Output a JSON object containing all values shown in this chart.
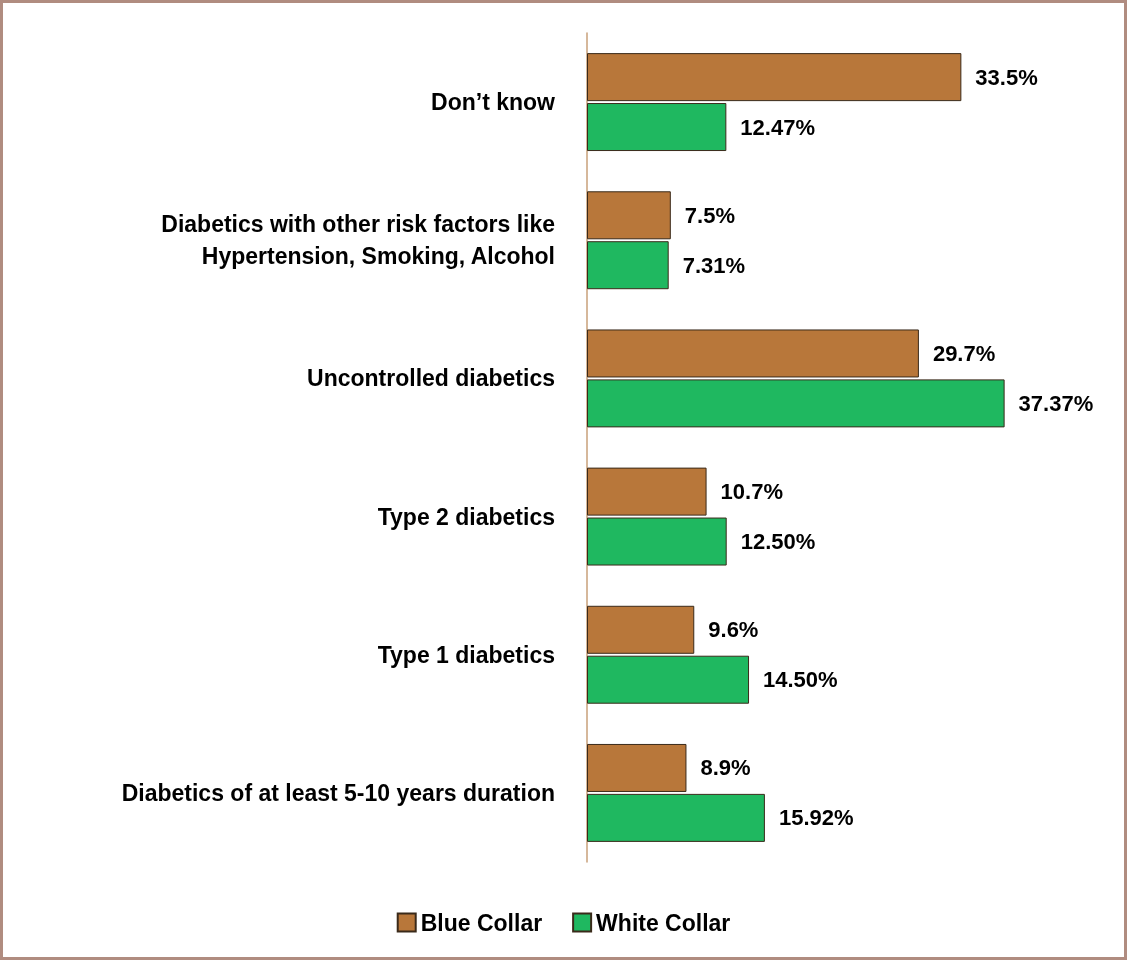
{
  "chart_data": {
    "type": "bar",
    "orientation": "horizontal",
    "categories": [
      "Don’t know",
      "Diabetics with other risk factors like\nHypertension, Smoking, Alcohol",
      "Uncontrolled diabetics",
      "Type 2 diabetics",
      "Type 1 diabetics",
      "Diabetics of at least 5-10 years duration"
    ],
    "series": [
      {
        "name": "Blue Collar",
        "color": "#b8773a",
        "values": [
          33.5,
          7.5,
          29.7,
          10.7,
          9.6,
          8.9
        ],
        "value_labels": [
          "33.5%",
          "7.5%",
          "29.7%",
          "10.7%",
          "9.6%",
          "8.9%"
        ]
      },
      {
        "name": "White Collar",
        "color": "#1fb860",
        "values": [
          12.47,
          7.31,
          37.37,
          12.5,
          14.5,
          15.92
        ],
        "value_labels": [
          "12.47%",
          "7.31%",
          "37.37%",
          "12.50%",
          "14.50%",
          "15.92%"
        ]
      }
    ],
    "legend": "bottom"
  }
}
